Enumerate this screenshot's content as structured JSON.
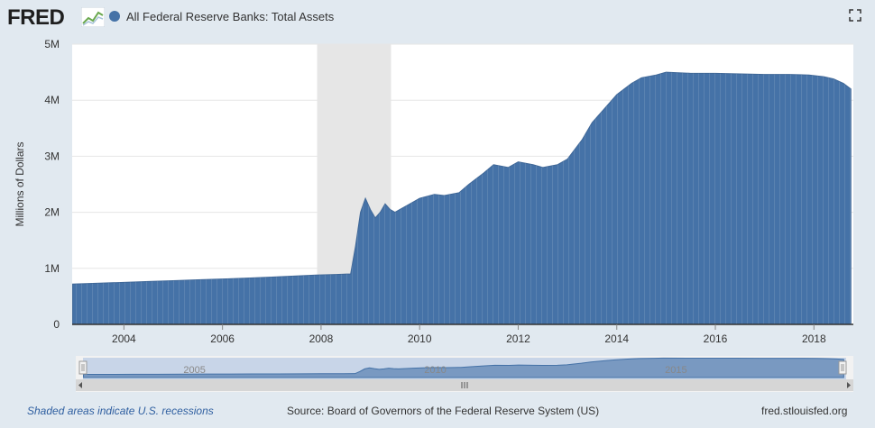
{
  "header": {
    "logo_text": "FRED",
    "series_title": "All Federal Reserve Banks: Total Assets",
    "series_color": "#4572a7"
  },
  "icons": {
    "logo_graph": "line-chart-icon",
    "fullscreen": "fullscreen-icon"
  },
  "footer": {
    "recession_note": "Shaded areas indicate U.S. recessions",
    "source": "Source: Board of Governors of the Federal Reserve System (US)",
    "site": "fred.stlouisfed.org"
  },
  "colors": {
    "series": "#4572a7",
    "recession": "#e6e6e6",
    "background": "#e1e9f0",
    "plot": "#ffffff"
  },
  "chart_data": {
    "type": "area",
    "title": "All Federal Reserve Banks: Total Assets",
    "xlabel": "",
    "ylabel": "Millions of Dollars",
    "x_ticks": [
      "2004",
      "2006",
      "2008",
      "2010",
      "2012",
      "2014",
      "2016",
      "2018"
    ],
    "y_ticks": [
      "0",
      "1M",
      "2M",
      "3M",
      "4M",
      "5M"
    ],
    "xlim": [
      2002.95,
      2018.8
    ],
    "ylim": [
      0,
      5000000
    ],
    "grid": true,
    "recessions": [
      [
        2007.92,
        2009.42
      ]
    ],
    "series": [
      {
        "name": "All Federal Reserve Banks: Total Assets",
        "x": [
          2002.96,
          2003.5,
          2004.0,
          2004.5,
          2005.0,
          2005.5,
          2006.0,
          2006.5,
          2007.0,
          2007.5,
          2007.9,
          2008.3,
          2008.6,
          2008.7,
          2008.8,
          2008.9,
          2009.0,
          2009.1,
          2009.2,
          2009.3,
          2009.4,
          2009.5,
          2009.6,
          2009.8,
          2010.0,
          2010.3,
          2010.5,
          2010.8,
          2011.0,
          2011.3,
          2011.5,
          2011.8,
          2012.0,
          2012.3,
          2012.5,
          2012.8,
          2013.0,
          2013.3,
          2013.5,
          2013.8,
          2014.0,
          2014.3,
          2014.5,
          2014.8,
          2015.0,
          2015.5,
          2016.0,
          2016.5,
          2017.0,
          2017.5,
          2017.9,
          2018.2,
          2018.4,
          2018.6,
          2018.75
        ],
        "values": [
          720000,
          735000,
          750000,
          765000,
          780000,
          795000,
          810000,
          825000,
          845000,
          865000,
          880000,
          890000,
          900000,
          1400000,
          2000000,
          2250000,
          2050000,
          1900000,
          2000000,
          2150000,
          2050000,
          2000000,
          2050000,
          2150000,
          2250000,
          2320000,
          2300000,
          2350000,
          2500000,
          2700000,
          2850000,
          2800000,
          2900000,
          2850000,
          2800000,
          2850000,
          2950000,
          3300000,
          3600000,
          3900000,
          4100000,
          4300000,
          4400000,
          4450000,
          4500000,
          4480000,
          4480000,
          4470000,
          4460000,
          4460000,
          4450000,
          4420000,
          4380000,
          4300000,
          4200000
        ]
      }
    ],
    "navigator": {
      "x_ticks": [
        "2005",
        "2010",
        "2015"
      ]
    }
  }
}
